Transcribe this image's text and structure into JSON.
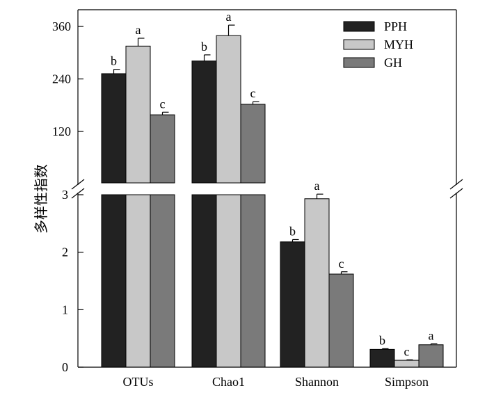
{
  "chart_data": {
    "type": "bar",
    "ylabel": "多样性指数",
    "categories": [
      "OTUs",
      "Chao1",
      "Shannon",
      "Simpson"
    ],
    "legend_position": "top-right",
    "broken_axis": true,
    "upper_axis": {
      "ylim": [
        0,
        380
      ],
      "ticks": [
        "120",
        "240",
        "360"
      ],
      "applies_to": [
        "OTUs",
        "Chao1"
      ]
    },
    "lower_axis": {
      "ylim": [
        0,
        3
      ],
      "ticks": [
        "0",
        "1",
        "2",
        "3"
      ],
      "applies_to": [
        "Shannon",
        "Simpson"
      ]
    },
    "series": [
      {
        "name": "PPH",
        "color": "#222222",
        "values": [
          252,
          281,
          2.18,
          0.31
        ],
        "errors": [
          10,
          14,
          0.04,
          0.012
        ],
        "letters": [
          "b",
          "b",
          "b",
          "b"
        ]
      },
      {
        "name": "MYH",
        "color": "#c8c8c8",
        "values": [
          315,
          339,
          2.93,
          0.12
        ],
        "errors": [
          18,
          24,
          0.08,
          0.008
        ],
        "letters": [
          "a",
          "a",
          "a",
          "c"
        ]
      },
      {
        "name": "GH",
        "color": "#7a7a7a",
        "values": [
          158,
          182,
          1.62,
          0.39
        ],
        "errors": [
          6,
          6,
          0.04,
          0.018
        ],
        "letters": [
          "c",
          "c",
          "c",
          "a"
        ]
      }
    ]
  }
}
